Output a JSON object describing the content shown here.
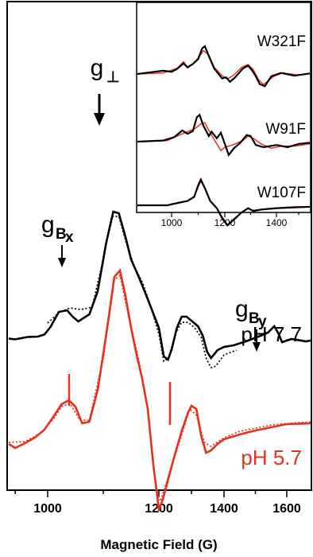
{
  "chart_data": {
    "type": "line",
    "title": "",
    "xlabel": "Magnetic Field (G)",
    "ylabel": "",
    "xlim": [
      880,
      1650
    ],
    "xticks": [
      "1000",
      "1200",
      "1400",
      "1600"
    ],
    "grid": false,
    "legend": "none",
    "colors": {
      "black": "#000000",
      "red": "#e8301c"
    },
    "traces": [
      {
        "label": "pH 7.7",
        "color": "#000000",
        "solid": [
          [
            880,
            0.22
          ],
          [
            900,
            0.18
          ],
          [
            940,
            0.33
          ],
          [
            970,
            0.35
          ],
          [
            990,
            0.48
          ],
          [
            1005,
            0.95
          ],
          [
            1020,
            1.9
          ],
          [
            1035,
            2.0
          ],
          [
            1045,
            1.6
          ],
          [
            1055,
            1.3
          ],
          [
            1075,
            1.75
          ],
          [
            1090,
            3.2
          ],
          [
            1105,
            6.2
          ],
          [
            1118,
            8.2
          ],
          [
            1128,
            8.1
          ],
          [
            1140,
            6.6
          ],
          [
            1150,
            5.2
          ],
          [
            1165,
            4.0
          ],
          [
            1180,
            2.7
          ],
          [
            1200,
            0.9
          ],
          [
            1215,
            -0.9
          ],
          [
            1228,
            -1.1
          ],
          [
            1240,
            -0.4
          ],
          [
            1255,
            0.9
          ],
          [
            1270,
            1.6
          ],
          [
            1285,
            1.6
          ],
          [
            1300,
            1.35
          ],
          [
            1320,
            1.0
          ],
          [
            1335,
            0.4
          ],
          [
            1348,
            -0.6
          ],
          [
            1360,
            -1.0
          ],
          [
            1380,
            -0.5
          ],
          [
            1400,
            -0.3
          ],
          [
            1430,
            -0.2
          ],
          [
            1470,
            0.05
          ],
          [
            1510,
            0.35
          ],
          [
            1540,
            0.6
          ],
          [
            1560,
            1.0
          ],
          [
            1572,
            0.6
          ],
          [
            1585,
            0.0
          ],
          [
            1610,
            0.2
          ],
          [
            1640,
            0.05
          ],
          [
            1650,
            0.1
          ]
        ],
        "dotted": [
          [
            1000,
            1.2
          ],
          [
            1020,
            1.85
          ],
          [
            1040,
            2.15
          ],
          [
            1060,
            2.05
          ],
          [
            1080,
            2.2
          ],
          [
            1100,
            5.2
          ],
          [
            1115,
            7.9
          ],
          [
            1128,
            7.9
          ],
          [
            1140,
            6.4
          ],
          [
            1155,
            4.8
          ],
          [
            1170,
            3.8
          ],
          [
            1185,
            2.3
          ],
          [
            1200,
            0.5
          ],
          [
            1215,
            -1.2
          ],
          [
            1230,
            -1.0
          ],
          [
            1250,
            0.5
          ],
          [
            1270,
            1.25
          ],
          [
            1290,
            1.25
          ],
          [
            1310,
            0.9
          ],
          [
            1330,
            0.3
          ],
          [
            1345,
            -1.0
          ],
          [
            1360,
            -1.6
          ],
          [
            1375,
            -1.5
          ],
          [
            1400,
            -0.8
          ],
          [
            1440,
            -0.5
          ]
        ]
      },
      {
        "label": "pH 5.7",
        "color": "#e8301c",
        "solid": [
          [
            880,
            -1.9
          ],
          [
            900,
            -2.15
          ],
          [
            930,
            -1.85
          ],
          [
            960,
            -1.5
          ],
          [
            990,
            -1.0
          ],
          [
            1010,
            -0.2
          ],
          [
            1025,
            0.6
          ],
          [
            1038,
            0.85
          ],
          [
            1050,
            0.45
          ],
          [
            1062,
            -0.6
          ],
          [
            1075,
            -0.5
          ],
          [
            1090,
            1.5
          ],
          [
            1105,
            4.9
          ],
          [
            1120,
            8.6
          ],
          [
            1130,
            9.0
          ],
          [
            1140,
            7.4
          ],
          [
            1150,
            5.4
          ],
          [
            1160,
            3.7
          ],
          [
            1170,
            2.2
          ],
          [
            1180,
            0.3
          ],
          [
            1190,
            -3.2
          ],
          [
            1200,
            -6.0
          ],
          [
            1212,
            -5.4
          ],
          [
            1230,
            -4.0
          ],
          [
            1250,
            -2.5
          ],
          [
            1270,
            -1.1
          ],
          [
            1290,
            0.1
          ],
          [
            1300,
            0.5
          ],
          [
            1315,
            0.3
          ],
          [
            1330,
            -1.4
          ],
          [
            1345,
            -2.45
          ],
          [
            1360,
            -2.3
          ],
          [
            1380,
            -1.9
          ],
          [
            1400,
            -1.6
          ],
          [
            1450,
            -1.3
          ],
          [
            1500,
            -1.05
          ],
          [
            1550,
            -0.85
          ],
          [
            1600,
            -0.65
          ],
          [
            1650,
            -0.6
          ]
        ],
        "dotted": [
          [
            880,
            -1.8
          ],
          [
            930,
            -1.75
          ],
          [
            980,
            -1.2
          ],
          [
            1010,
            -0.35
          ],
          [
            1025,
            0.45
          ],
          [
            1040,
            0.65
          ],
          [
            1058,
            -0.4
          ],
          [
            1075,
            -0.4
          ],
          [
            1100,
            3.5
          ],
          [
            1120,
            8.4
          ],
          [
            1130,
            8.7
          ],
          [
            1145,
            6.2
          ],
          [
            1165,
            3.2
          ],
          [
            1180,
            0.4
          ],
          [
            1195,
            -4.8
          ],
          [
            1205,
            -5.5
          ],
          [
            1225,
            -4.2
          ],
          [
            1250,
            -2.6
          ],
          [
            1275,
            -1.0
          ],
          [
            1295,
            0.3
          ],
          [
            1315,
            -0.1
          ],
          [
            1340,
            -1.8
          ],
          [
            1360,
            -2.05
          ],
          [
            1400,
            -1.5
          ],
          [
            1450,
            -1.1
          ],
          [
            1550,
            -0.7
          ],
          [
            1650,
            -0.5
          ]
        ]
      }
    ],
    "annotations": [
      {
        "main": "g",
        "sub": "⊥"
      },
      {
        "main": "g",
        "sub": "B",
        "sub2": "x"
      },
      {
        "main": "g",
        "sub": "B",
        "sub2": "y"
      }
    ],
    "inset": {
      "xlim": [
        920,
        1550
      ],
      "xticks": [
        "1000",
        "1200",
        "1400"
      ],
      "series": [
        {
          "label": "W321F",
          "black": [
            [
              920,
              0
            ],
            [
              980,
              0.3
            ],
            [
              1000,
              0.2
            ],
            [
              1020,
              0.45
            ],
            [
              1045,
              0.95
            ],
            [
              1060,
              0.6
            ],
            [
              1080,
              0.9
            ],
            [
              1100,
              1.35
            ],
            [
              1115,
              2.3
            ],
            [
              1125,
              2.5
            ],
            [
              1140,
              1.6
            ],
            [
              1160,
              0.5
            ],
            [
              1190,
              -0.4
            ],
            [
              1205,
              -0.3
            ],
            [
              1220,
              -0.7
            ],
            [
              1240,
              -0.3
            ],
            [
              1270,
              0.5
            ],
            [
              1290,
              0.75
            ],
            [
              1305,
              0.35
            ],
            [
              1320,
              -0.2
            ],
            [
              1335,
              -0.9
            ],
            [
              1355,
              -1.1
            ],
            [
              1380,
              -0.2
            ],
            [
              1420,
              0.1
            ],
            [
              1480,
              -0.15
            ],
            [
              1550,
              0.05
            ]
          ],
          "red": [
            [
              920,
              0
            ],
            [
              980,
              0.1
            ],
            [
              1020,
              0.5
            ],
            [
              1045,
              1.1
            ],
            [
              1060,
              0.55
            ],
            [
              1080,
              0.9
            ],
            [
              1100,
              1.45
            ],
            [
              1120,
              2.1
            ],
            [
              1140,
              1.7
            ],
            [
              1160,
              0.6
            ],
            [
              1190,
              -0.15
            ],
            [
              1210,
              -0.45
            ],
            [
              1235,
              -0.1
            ],
            [
              1265,
              0.6
            ],
            [
              1290,
              0.85
            ],
            [
              1310,
              0.4
            ],
            [
              1330,
              -0.5
            ],
            [
              1350,
              -0.95
            ],
            [
              1390,
              -0.2
            ],
            [
              1430,
              0.1
            ],
            [
              1500,
              -0.1
            ],
            [
              1550,
              0.05
            ]
          ]
        },
        {
          "label": "W91F",
          "black": [
            [
              920,
              0
            ],
            [
              980,
              0.1
            ],
            [
              1010,
              0.4
            ],
            [
              1040,
              1.0
            ],
            [
              1060,
              0.7
            ],
            [
              1080,
              0.95
            ],
            [
              1095,
              2.2
            ],
            [
              1105,
              2.4
            ],
            [
              1120,
              1.4
            ],
            [
              1140,
              0.5
            ],
            [
              1150,
              0.9
            ],
            [
              1170,
              0.3
            ],
            [
              1185,
              0.8
            ],
            [
              1200,
              -0.2
            ],
            [
              1215,
              -1.2
            ],
            [
              1235,
              -0.6
            ],
            [
              1260,
              -0.1
            ],
            [
              1285,
              0.6
            ],
            [
              1300,
              0.5
            ],
            [
              1320,
              -0.3
            ],
            [
              1350,
              -0.5
            ],
            [
              1400,
              -0.3
            ],
            [
              1450,
              -0.5
            ],
            [
              1500,
              -0.2
            ],
            [
              1550,
              -0.1
            ]
          ],
          "red": [
            [
              920,
              0
            ],
            [
              990,
              0.1
            ],
            [
              1030,
              0.6
            ],
            [
              1060,
              0.9
            ],
            [
              1090,
              1.2
            ],
            [
              1110,
              1.6
            ],
            [
              1125,
              1.7
            ],
            [
              1140,
              1.0
            ],
            [
              1160,
              0.2
            ],
            [
              1185,
              -0.8
            ],
            [
              1200,
              -0.5
            ],
            [
              1230,
              -0.3
            ],
            [
              1270,
              0.1
            ],
            [
              1290,
              0.5
            ],
            [
              1310,
              0.3
            ],
            [
              1340,
              -0.2
            ],
            [
              1380,
              -0.6
            ],
            [
              1420,
              -0.4
            ],
            [
              1480,
              -0.4
            ],
            [
              1550,
              -0.2
            ]
          ]
        },
        {
          "label": "W107F",
          "black": [
            [
              920,
              0
            ],
            [
              990,
              0
            ],
            [
              1030,
              0.2
            ],
            [
              1060,
              0.3
            ],
            [
              1085,
              0.6
            ],
            [
              1100,
              1.4
            ],
            [
              1110,
              1.8
            ],
            [
              1125,
              1.2
            ],
            [
              1145,
              0.3
            ],
            [
              1170,
              -0.2
            ],
            [
              1190,
              -0.9
            ],
            [
              1210,
              -1.4
            ],
            [
              1235,
              -1.0
            ],
            [
              1265,
              -0.5
            ],
            [
              1290,
              -0.2
            ],
            [
              1310,
              -0.4
            ],
            [
              1340,
              -0.3
            ],
            [
              1400,
              -0.2
            ],
            [
              1480,
              -0.15
            ],
            [
              1550,
              -0.1
            ]
          ],
          "red": [
            [
              920,
              0
            ],
            [
              990,
              0
            ],
            [
              1030,
              0.15
            ],
            [
              1060,
              0.3
            ],
            [
              1085,
              0.55
            ],
            [
              1100,
              1.3
            ],
            [
              1110,
              1.7
            ],
            [
              1125,
              1.15
            ],
            [
              1145,
              0.35
            ],
            [
              1170,
              -0.2
            ],
            [
              1190,
              -0.8
            ],
            [
              1210,
              -1.35
            ],
            [
              1235,
              -0.95
            ],
            [
              1265,
              -0.5
            ],
            [
              1290,
              -0.25
            ],
            [
              1310,
              -0.35
            ],
            [
              1340,
              -0.3
            ],
            [
              1400,
              -0.2
            ],
            [
              1480,
              -0.1
            ],
            [
              1550,
              -0.1
            ]
          ]
        }
      ]
    }
  }
}
